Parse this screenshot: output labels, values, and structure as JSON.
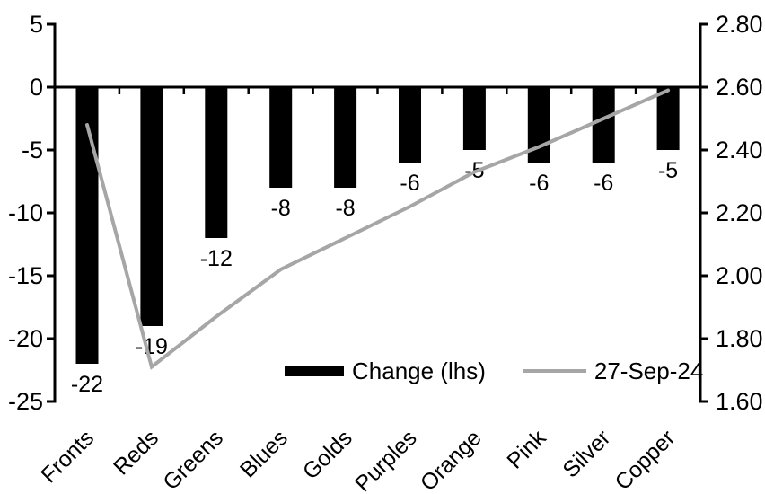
{
  "chart_data": {
    "type": "combo-bar-line",
    "categories": [
      "Fronts",
      "Reds",
      "Greens",
      "Blues",
      "Golds",
      "Purples",
      "Orange",
      "Pink",
      "Silver",
      "Copper"
    ],
    "series": [
      {
        "name": "Change (lhs)",
        "type": "bar",
        "axis": "left",
        "color": "#000000",
        "values": [
          -22,
          -19,
          -12,
          -8,
          -8,
          -6,
          -5,
          -6,
          -6,
          -5
        ]
      },
      {
        "name": "27-Sep-24",
        "type": "line",
        "axis": "right",
        "color": "#a6a6a6",
        "values": [
          2.48,
          1.71,
          1.87,
          2.02,
          2.12,
          2.22,
          2.33,
          2.41,
          2.5,
          2.59
        ]
      }
    ],
    "data_labels": [
      "-22",
      "-19",
      "-12",
      "-8",
      "-8",
      "-6",
      "-5",
      "-6",
      "-6",
      "-5"
    ],
    "left_axis": {
      "ticks": [
        "5",
        "0",
        "-5",
        "-10",
        "-15",
        "-20",
        "-25"
      ],
      "max": 5,
      "min": -25
    },
    "right_axis": {
      "ticks": [
        "2.80",
        "2.60",
        "2.40",
        "2.20",
        "2.00",
        "1.80",
        "1.60"
      ],
      "max": 2.8,
      "min": 1.6
    },
    "legend": {
      "bar_label": "Change (lhs)",
      "line_label": "27-Sep-24"
    },
    "title": "",
    "grid": false,
    "legend_position": "inside-bottom",
    "axis_color": "#000000"
  }
}
